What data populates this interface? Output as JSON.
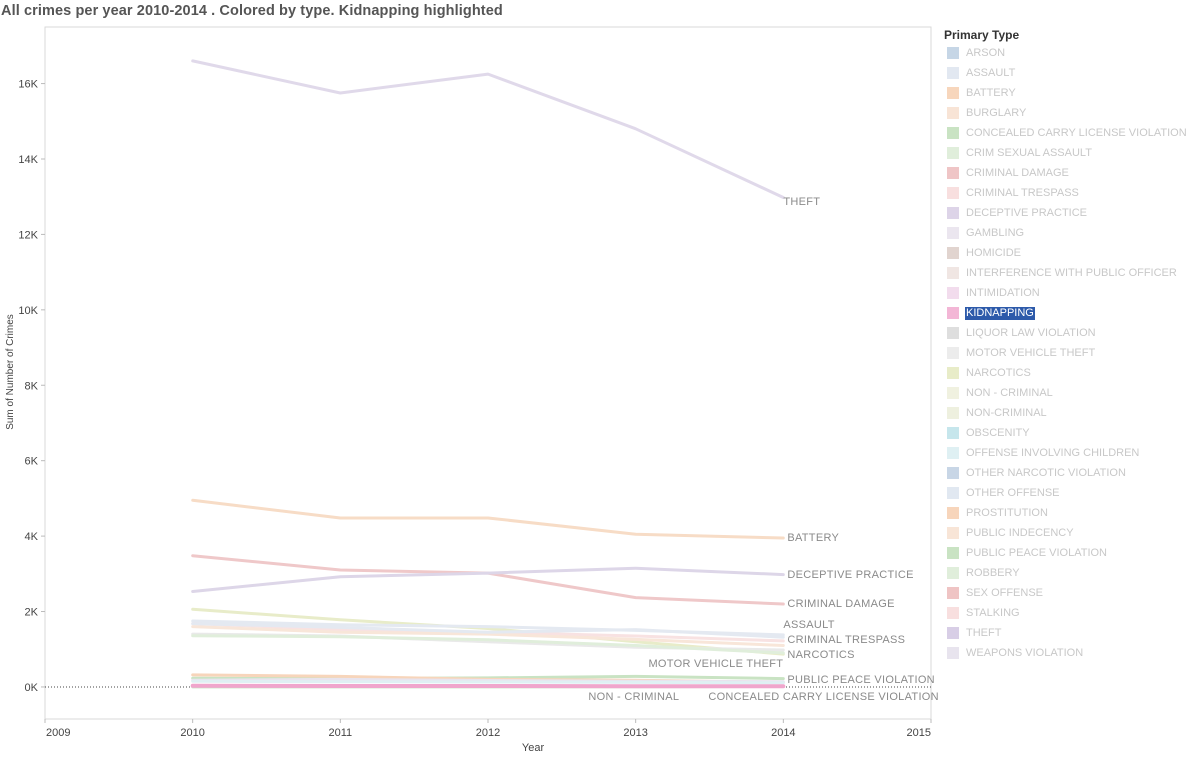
{
  "title": "All crimes per year 2010-2014 .  Colored by type. Kidnapping highlighted",
  "legend": {
    "title": "Primary Type",
    "items": [
      {
        "label": "ARSON",
        "color": "#c6d6e6"
      },
      {
        "label": "ASSAULT",
        "color": "#e2e8f1"
      },
      {
        "label": "BATTERY",
        "color": "#f7d6bc"
      },
      {
        "label": "BURGLARY",
        "color": "#f8e4d6"
      },
      {
        "label": "CONCEALED CARRY LICENSE VIOLATION",
        "color": "#c9e3c3"
      },
      {
        "label": "CRIM SEXUAL ASSAULT",
        "color": "#e0eedb"
      },
      {
        "label": "CRIMINAL DAMAGE",
        "color": "#efc5c6"
      },
      {
        "label": "CRIMINAL TRESPASS",
        "color": "#f8dfdf"
      },
      {
        "label": "DECEPTIVE PRACTICE",
        "color": "#ddd4e8"
      },
      {
        "label": "GAMBLING",
        "color": "#ebe6ef"
      },
      {
        "label": "HOMICIDE",
        "color": "#e1d4cf"
      },
      {
        "label": "INTERFERENCE WITH PUBLIC OFFICER",
        "color": "#f0e6e3"
      },
      {
        "label": "INTIMIDATION",
        "color": "#f2dced"
      },
      {
        "label": "KIDNAPPING",
        "color": "#f3b6d6"
      },
      {
        "label": "LIQUOR LAW VIOLATION",
        "color": "#dedede"
      },
      {
        "label": "MOTOR VEHICLE THEFT",
        "color": "#ececec"
      },
      {
        "label": "NARCOTICS",
        "color": "#e8ecc8"
      },
      {
        "label": "NON - CRIMINAL",
        "color": "#f0f1e0"
      },
      {
        "label": "NON-CRIMINAL",
        "color": "#eef0df"
      },
      {
        "label": "OBSCENITY",
        "color": "#c6e6ec"
      },
      {
        "label": "OFFENSE INVOLVING CHILDREN",
        "color": "#dff0f3"
      },
      {
        "label": "OTHER NARCOTIC VIOLATION",
        "color": "#c8d6e6"
      },
      {
        "label": "OTHER OFFENSE",
        "color": "#e1e8f1"
      },
      {
        "label": "PROSTITUTION",
        "color": "#f7d5bb"
      },
      {
        "label": "PUBLIC INDECENCY",
        "color": "#f8e5d7"
      },
      {
        "label": "PUBLIC PEACE VIOLATION",
        "color": "#c9e3c3"
      },
      {
        "label": "ROBBERY",
        "color": "#e0eedb"
      },
      {
        "label": "SEX OFFENSE",
        "color": "#efc4c4"
      },
      {
        "label": "STALKING",
        "color": "#f8dfdf"
      },
      {
        "label": "THEFT",
        "color": "#d8cee6"
      },
      {
        "label": "WEAPONS VIOLATION",
        "color": "#e8e4ee"
      }
    ]
  },
  "chart_data": {
    "type": "line",
    "xlabel": "Year",
    "ylabel": "Sum of Number of Crimes",
    "x_ticks": [
      "2009",
      "2010",
      "2011",
      "2012",
      "2013",
      "2014",
      "2015"
    ],
    "xlim": [
      2009,
      2015
    ],
    "y_ticks": [
      {
        "value": 0,
        "label": "0K"
      },
      {
        "value": 2000,
        "label": "2K"
      },
      {
        "value": 4000,
        "label": "4K"
      },
      {
        "value": 6000,
        "label": "6K"
      },
      {
        "value": 8000,
        "label": "8K"
      },
      {
        "value": 10000,
        "label": "10K"
      },
      {
        "value": 12000,
        "label": "12K"
      },
      {
        "value": 14000,
        "label": "14K"
      },
      {
        "value": 16000,
        "label": "16K"
      }
    ],
    "ylim": [
      -850,
      17500
    ],
    "grid": false,
    "legend_position": "right",
    "highlighted_series": "KIDNAPPING",
    "x": [
      2010,
      2011,
      2012,
      2013,
      2014
    ],
    "series": [
      {
        "name": "THEFT",
        "color": "#e0d9ea",
        "values": [
          16600,
          15750,
          16250,
          14800,
          12980
        ],
        "end_label": "THEFT"
      },
      {
        "name": "BATTERY",
        "color": "#f7dcc6",
        "values": [
          4950,
          4480,
          4480,
          4050,
          3950
        ],
        "end_label": "BATTERY"
      },
      {
        "name": "CRIMINAL DAMAGE",
        "color": "#efc8c9",
        "values": [
          3480,
          3100,
          3020,
          2370,
          2200
        ],
        "end_label": "CRIMINAL DAMAGE"
      },
      {
        "name": "DECEPTIVE PRACTICE",
        "color": "#ddd6e8",
        "values": [
          2530,
          2920,
          3020,
          3150,
          2980
        ],
        "end_label": "DECEPTIVE PRACTICE"
      },
      {
        "name": "NARCOTICS",
        "color": "#e8ecc9",
        "values": [
          2060,
          1780,
          1550,
          1200,
          870
        ],
        "end_label": "NARCOTICS"
      },
      {
        "name": "ASSAULT",
        "color": "#e4e9f1",
        "values": [
          1750,
          1650,
          1600,
          1500,
          1380
        ],
        "end_label": "ASSAULT"
      },
      {
        "name": "CRIMINAL TRESPASS",
        "color": "#f8e2e2",
        "values": [
          1680,
          1520,
          1450,
          1350,
          1220
        ],
        "end_label": "CRIMINAL TRESPASS"
      },
      {
        "name": "BURGLARY",
        "color": "#f8e6d9",
        "values": [
          1600,
          1450,
          1400,
          1260,
          1100
        ]
      },
      {
        "name": "OTHER OFFENSE",
        "color": "#e4e9f1",
        "values": [
          1680,
          1580,
          1450,
          1520,
          1320
        ]
      },
      {
        "name": "MOTOR VEHICLE THEFT",
        "color": "#e9e9e9",
        "values": [
          1400,
          1350,
          1200,
          1050,
          980
        ],
        "end_label": "MOTOR VEHICLE THEFT"
      },
      {
        "name": "ROBBERY",
        "color": "#e0eedb",
        "values": [
          1360,
          1330,
          1250,
          1100,
          900
        ]
      },
      {
        "name": "PUBLIC PEACE VIOLATION",
        "color": "#c9e3c3",
        "values": [
          230,
          220,
          240,
          280,
          220
        ],
        "end_label": "PUBLIC PEACE VIOLATION"
      },
      {
        "name": "PROSTITUTION",
        "color": "#f7d5bb",
        "values": [
          320,
          280,
          200,
          180,
          120
        ]
      },
      {
        "name": "WEAPONS VIOLATION",
        "color": "#e8e4ee",
        "values": [
          180,
          200,
          170,
          150,
          140
        ]
      },
      {
        "name": "OFFENSE INVOLVING CHILDREN",
        "color": "#dff0f3",
        "values": [
          150,
          140,
          130,
          120,
          110
        ]
      },
      {
        "name": "NON - CRIMINAL",
        "color": "#f0f1e0",
        "values": [
          40,
          35,
          30,
          25,
          20
        ],
        "end_label": "NON - CRIMINAL"
      },
      {
        "name": "CONCEALED CARRY LICENSE VIOLATION",
        "color": "#c9e3c3",
        "values": [
          0,
          0,
          0,
          5,
          15
        ],
        "end_label": "CONCEALED CARRY LICENSE VIOLATION"
      },
      {
        "name": "KIDNAPPING",
        "color": "#f0a6cc",
        "values": [
          30,
          25,
          25,
          20,
          20
        ]
      }
    ]
  }
}
